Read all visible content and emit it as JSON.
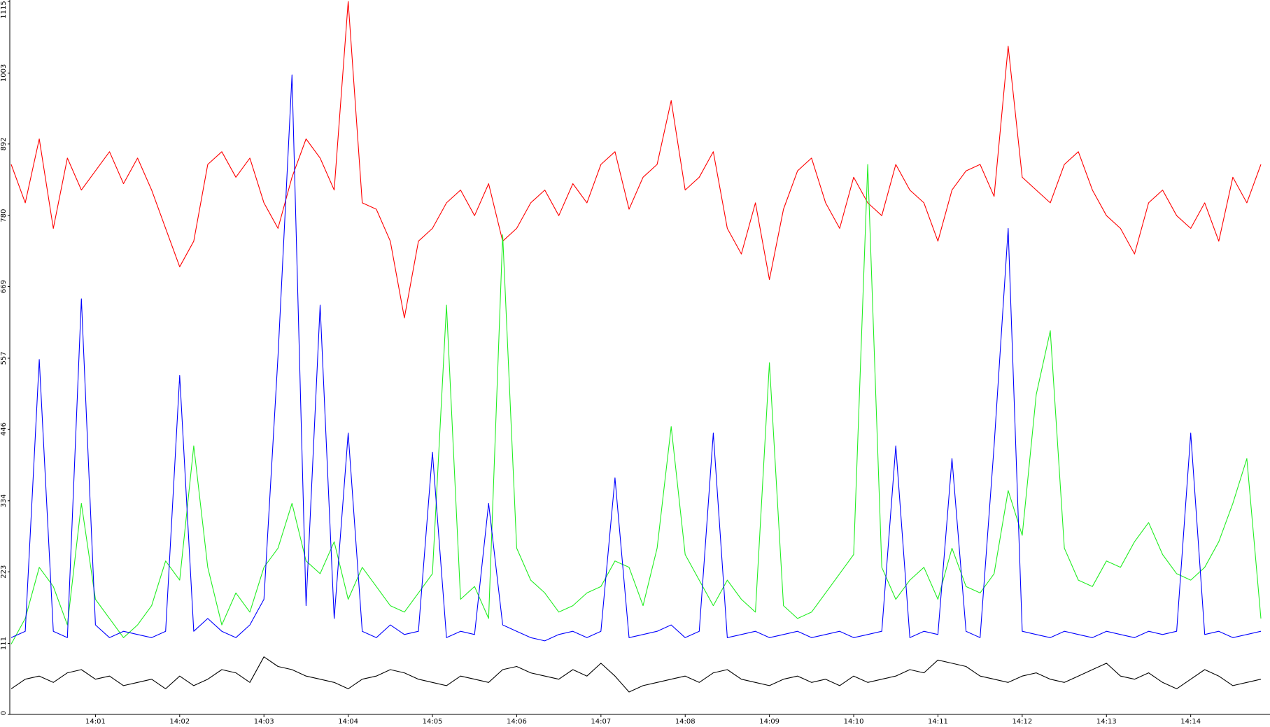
{
  "chart_data": {
    "type": "line",
    "categories": [
      null,
      null,
      null,
      null,
      null,
      null,
      "14:01",
      null,
      null,
      null,
      null,
      null,
      "14:02",
      null,
      null,
      null,
      null,
      null,
      "14:03",
      null,
      null,
      null,
      null,
      null,
      "14:04",
      null,
      null,
      null,
      null,
      null,
      "14:05",
      null,
      null,
      null,
      null,
      null,
      "14:06",
      null,
      null,
      null,
      null,
      null,
      "14:07",
      null,
      null,
      null,
      null,
      null,
      "14:08",
      null,
      null,
      null,
      null,
      null,
      "14:09",
      null,
      null,
      null,
      null,
      null,
      "14:10",
      null,
      null,
      null,
      null,
      null,
      "14:11",
      null,
      null,
      null,
      null,
      null,
      "14:12",
      null,
      null,
      null,
      null,
      null,
      "14:13",
      null,
      null,
      null,
      null,
      null,
      "14:14",
      null,
      null,
      null,
      null,
      null
    ],
    "series": [
      {
        "color": "#ff0000",
        "values": [
          860,
          800,
          900,
          760,
          870,
          820,
          850,
          880,
          830,
          870,
          820,
          760,
          700,
          740,
          860,
          880,
          840,
          870,
          800,
          760,
          840,
          900,
          870,
          820,
          1115,
          800,
          790,
          740,
          620,
          740,
          760,
          800,
          820,
          780,
          830,
          740,
          760,
          800,
          820,
          780,
          830,
          800,
          860,
          880,
          790,
          840,
          860,
          960,
          820,
          840,
          880,
          760,
          720,
          800,
          680,
          790,
          850,
          870,
          800,
          760,
          840,
          800,
          780,
          860,
          820,
          800,
          740,
          820,
          850,
          860,
          810,
          1045,
          840,
          820,
          800,
          860,
          880,
          820,
          780,
          760,
          720,
          800,
          820,
          780,
          760,
          800,
          740,
          840,
          800,
          860
        ]
      },
      {
        "color": "#22ee22",
        "values": [
          110,
          150,
          230,
          200,
          140,
          330,
          180,
          150,
          120,
          140,
          170,
          240,
          210,
          420,
          230,
          140,
          190,
          160,
          230,
          260,
          330,
          240,
          220,
          270,
          180,
          230,
          200,
          170,
          160,
          190,
          220,
          640,
          180,
          200,
          150,
          750,
          260,
          210,
          190,
          160,
          170,
          190,
          200,
          240,
          230,
          170,
          260,
          450,
          250,
          210,
          170,
          210,
          180,
          160,
          550,
          170,
          150,
          160,
          190,
          220,
          250,
          860,
          230,
          180,
          210,
          230,
          180,
          260,
          200,
          190,
          220,
          350,
          280,
          500,
          600,
          260,
          210,
          200,
          240,
          230,
          270,
          300,
          250,
          220,
          210,
          230,
          270,
          330,
          400,
          150
        ]
      },
      {
        "color": "#0000ff",
        "values": [
          120,
          130,
          555,
          130,
          120,
          650,
          140,
          120,
          130,
          125,
          120,
          130,
          530,
          130,
          150,
          130,
          120,
          140,
          180,
          560,
          1000,
          170,
          640,
          150,
          440,
          130,
          120,
          140,
          125,
          130,
          410,
          120,
          130,
          125,
          330,
          140,
          130,
          120,
          115,
          125,
          130,
          120,
          130,
          370,
          120,
          125,
          130,
          140,
          120,
          130,
          440,
          120,
          125,
          130,
          120,
          125,
          130,
          120,
          125,
          130,
          120,
          125,
          130,
          420,
          120,
          130,
          125,
          400,
          130,
          120,
          420,
          760,
          130,
          125,
          120,
          130,
          125,
          120,
          130,
          125,
          120,
          130,
          125,
          130,
          440,
          125,
          130,
          120,
          125,
          130
        ]
      },
      {
        "color": "#000000",
        "values": [
          40,
          55,
          60,
          50,
          65,
          70,
          55,
          60,
          45,
          50,
          55,
          40,
          60,
          45,
          55,
          70,
          65,
          50,
          90,
          75,
          70,
          60,
          55,
          50,
          40,
          55,
          60,
          70,
          65,
          55,
          50,
          45,
          60,
          55,
          50,
          70,
          75,
          65,
          60,
          55,
          70,
          60,
          80,
          60,
          35,
          45,
          50,
          55,
          60,
          50,
          65,
          70,
          55,
          50,
          45,
          55,
          60,
          50,
          55,
          45,
          60,
          50,
          55,
          60,
          70,
          65,
          85,
          80,
          75,
          60,
          55,
          50,
          60,
          65,
          55,
          50,
          60,
          70,
          80,
          60,
          55,
          65,
          50,
          40,
          55,
          70,
          60,
          45,
          50,
          55
        ]
      }
    ],
    "ylim": [
      0,
      1115
    ],
    "yticks": [
      0,
      111,
      223,
      334,
      446,
      557,
      669,
      780,
      892,
      1003,
      1115
    ]
  }
}
